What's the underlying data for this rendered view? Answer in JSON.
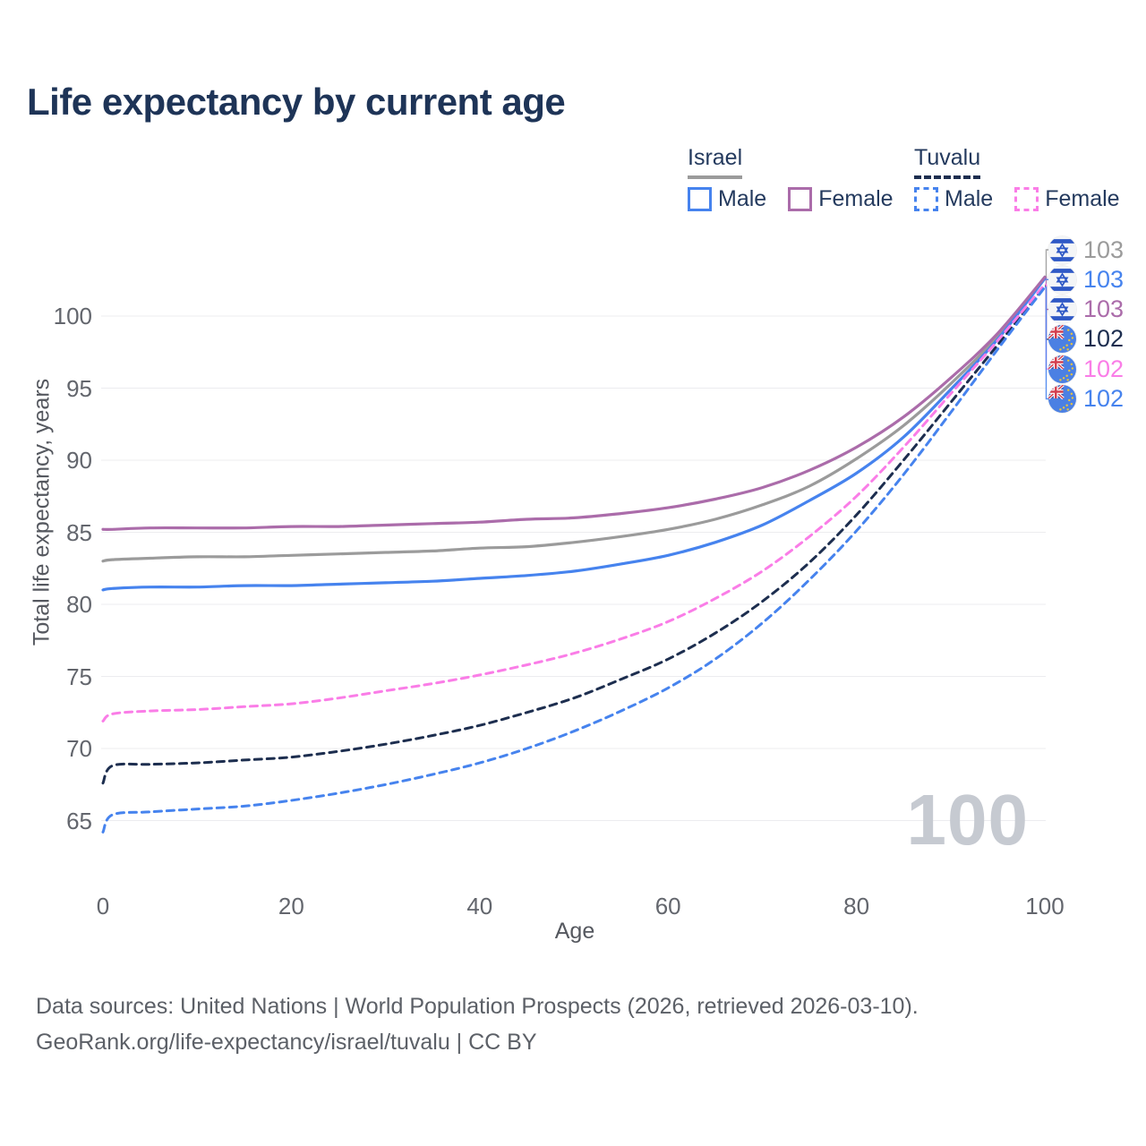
{
  "title": "Life expectancy by current age",
  "watermark": "100",
  "legend": {
    "groups": [
      {
        "label": "Israel",
        "line_style": "solid",
        "underline_color": "#9b9b9b",
        "items": [
          {
            "label": "Male",
            "color": "#4683ee",
            "dash": false
          },
          {
            "label": "Female",
            "color": "#ab6caa",
            "dash": false
          }
        ]
      },
      {
        "label": "Tuvalu",
        "line_style": "dashed",
        "underline_color": "#1d2e4f",
        "items": [
          {
            "label": "Male",
            "color": "#4683ee",
            "dash": true
          },
          {
            "label": "Female",
            "color": "#fa7de7",
            "dash": true
          }
        ]
      }
    ]
  },
  "chart_data": {
    "type": "line",
    "title": "Life expectancy by current age",
    "xlabel": "Age",
    "ylabel": "Total life expectancy, years",
    "xlim": [
      0,
      100
    ],
    "ylim": [
      63,
      104
    ],
    "xticks": [
      0,
      20,
      40,
      60,
      80,
      100
    ],
    "yticks": [
      65,
      70,
      75,
      80,
      85,
      90,
      95,
      100
    ],
    "grid": "horizontal",
    "gridline_color": "#ececef",
    "x": [
      0,
      1,
      5,
      10,
      15,
      20,
      25,
      30,
      35,
      40,
      45,
      50,
      55,
      60,
      65,
      70,
      75,
      80,
      85,
      90,
      95,
      100
    ],
    "series": [
      {
        "name": "Israel (both sexes)",
        "country": "israel",
        "flag_icon": "israel-flag-icon",
        "color": "#9b9b9b",
        "dash": false,
        "end_label": "103",
        "values": [
          83.0,
          83.1,
          83.2,
          83.3,
          83.3,
          83.4,
          83.5,
          83.6,
          83.7,
          83.9,
          84.0,
          84.3,
          84.7,
          85.2,
          85.9,
          86.9,
          88.2,
          90.1,
          92.4,
          95.3,
          98.6,
          102.7
        ]
      },
      {
        "name": "Israel Male",
        "country": "israel",
        "flag_icon": "israel-flag-icon",
        "color": "#4683ee",
        "dash": false,
        "end_label": "103",
        "values": [
          81.0,
          81.1,
          81.2,
          81.2,
          81.3,
          81.3,
          81.4,
          81.5,
          81.6,
          81.8,
          82.0,
          82.3,
          82.8,
          83.4,
          84.3,
          85.5,
          87.2,
          89.1,
          91.6,
          94.9,
          98.4,
          102.6
        ]
      },
      {
        "name": "Israel Female",
        "country": "israel",
        "flag_icon": "israel-flag-icon",
        "color": "#ab6caa",
        "dash": false,
        "end_label": "103",
        "values": [
          85.2,
          85.2,
          85.3,
          85.3,
          85.3,
          85.4,
          85.4,
          85.5,
          85.6,
          85.7,
          85.9,
          86.0,
          86.3,
          86.7,
          87.3,
          88.1,
          89.3,
          90.9,
          93.0,
          95.7,
          98.8,
          102.7
        ]
      },
      {
        "name": "Tuvalu (both sexes)",
        "country": "tuvalu",
        "flag_icon": "tuvalu-flag-icon",
        "color": "#1d2e4f",
        "dash": true,
        "end_label": "102",
        "values": [
          67.6,
          68.8,
          68.9,
          69.0,
          69.2,
          69.4,
          69.8,
          70.3,
          70.9,
          71.6,
          72.5,
          73.5,
          74.8,
          76.2,
          78.0,
          80.2,
          82.9,
          86.2,
          90.0,
          94.0,
          98.0,
          102.1
        ]
      },
      {
        "name": "Tuvalu Female",
        "country": "tuvalu",
        "flag_icon": "tuvalu-flag-icon",
        "color": "#fa7de7",
        "dash": true,
        "end_label": "102",
        "values": [
          71.9,
          72.4,
          72.6,
          72.7,
          72.9,
          73.1,
          73.5,
          74.0,
          74.5,
          75.1,
          75.8,
          76.6,
          77.6,
          78.8,
          80.4,
          82.3,
          84.7,
          87.5,
          90.9,
          94.6,
          98.3,
          102.2
        ]
      },
      {
        "name": "Tuvalu Male",
        "country": "tuvalu",
        "flag_icon": "tuvalu-flag-icon",
        "color": "#4683ee",
        "dash": true,
        "end_label": "102",
        "values": [
          64.2,
          65.4,
          65.6,
          65.8,
          66.0,
          66.4,
          66.9,
          67.5,
          68.2,
          69.0,
          70.0,
          71.2,
          72.6,
          74.2,
          76.2,
          78.7,
          81.7,
          85.1,
          89.0,
          93.3,
          97.7,
          102.0
        ]
      }
    ]
  },
  "footer": {
    "line1": "Data sources: United Nations | World Population Prospects (2026, retrieved 2026-03-10).",
    "line2": "GeoRank.org/life-expectancy/israel/tuvalu | CC BY"
  }
}
